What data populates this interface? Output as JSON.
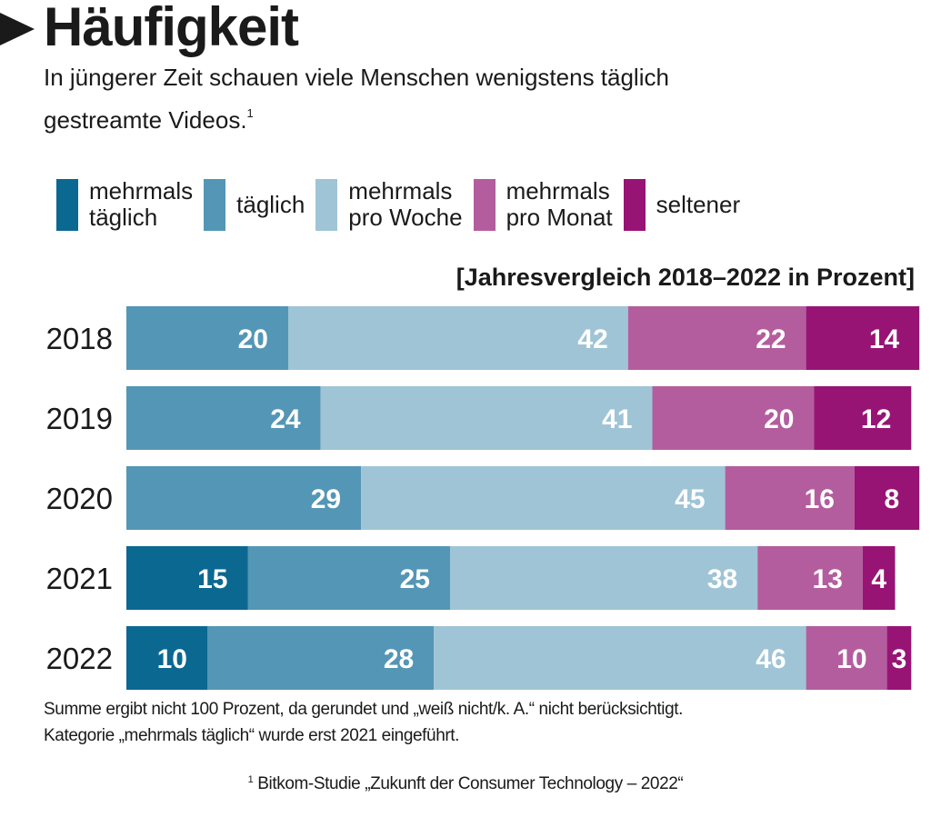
{
  "header": {
    "title": "Häufigkeit",
    "subtitle": "In jüngerer Zeit schauen viele Menschen wenigstens täglich gestreamte Videos.",
    "subtitle_footnote_mark": "1"
  },
  "legend": [
    {
      "label": "mehrmals\ntäglich",
      "color": "#0b6891"
    },
    {
      "label": "täglich",
      "color": "#5496b5"
    },
    {
      "label": "mehrmals\npro Woche",
      "color": "#9fc4d6"
    },
    {
      "label": "mehrmals\npro Monat",
      "color": "#b45d9e"
    },
    {
      "label": "seltener",
      "color": "#971475"
    }
  ],
  "unit_note": "[Jahresvergleich 2018–2022 in Prozent]",
  "chart_data": {
    "type": "bar",
    "orientation": "horizontal",
    "stacked": true,
    "title": "Häufigkeit",
    "subtitle": "[Jahresvergleich 2018–2022 in Prozent]",
    "xlabel": "",
    "ylabel": "",
    "xlim": [
      0,
      100
    ],
    "grid": false,
    "legend_position": "top",
    "categories": [
      "2018",
      "2019",
      "2020",
      "2021",
      "2022"
    ],
    "series": [
      {
        "name": "mehrmals täglich",
        "color": "#0b6891",
        "values": [
          null,
          null,
          null,
          15,
          10
        ]
      },
      {
        "name": "täglich",
        "color": "#5496b5",
        "values": [
          20,
          24,
          29,
          25,
          28
        ]
      },
      {
        "name": "mehrmals pro Woche",
        "color": "#9fc4d6",
        "values": [
          42,
          41,
          45,
          38,
          46
        ]
      },
      {
        "name": "mehrmals pro Monat",
        "color": "#b45d9e",
        "values": [
          22,
          20,
          16,
          13,
          10
        ]
      },
      {
        "name": "seltener",
        "color": "#971475",
        "values": [
          14,
          12,
          8,
          4,
          3
        ]
      }
    ]
  },
  "footnotes": {
    "line1": "Summe ergibt nicht 100 Prozent, da gerundet und „weiß nicht/k. A.“ nicht berücksichtigt.",
    "line2": "Kategorie „mehrmals täglich“ wurde erst 2021 eingeführt.",
    "source_mark": "1",
    "source": " Bitkom-Studie „Zukunft der Consumer Technology – 2022“"
  }
}
